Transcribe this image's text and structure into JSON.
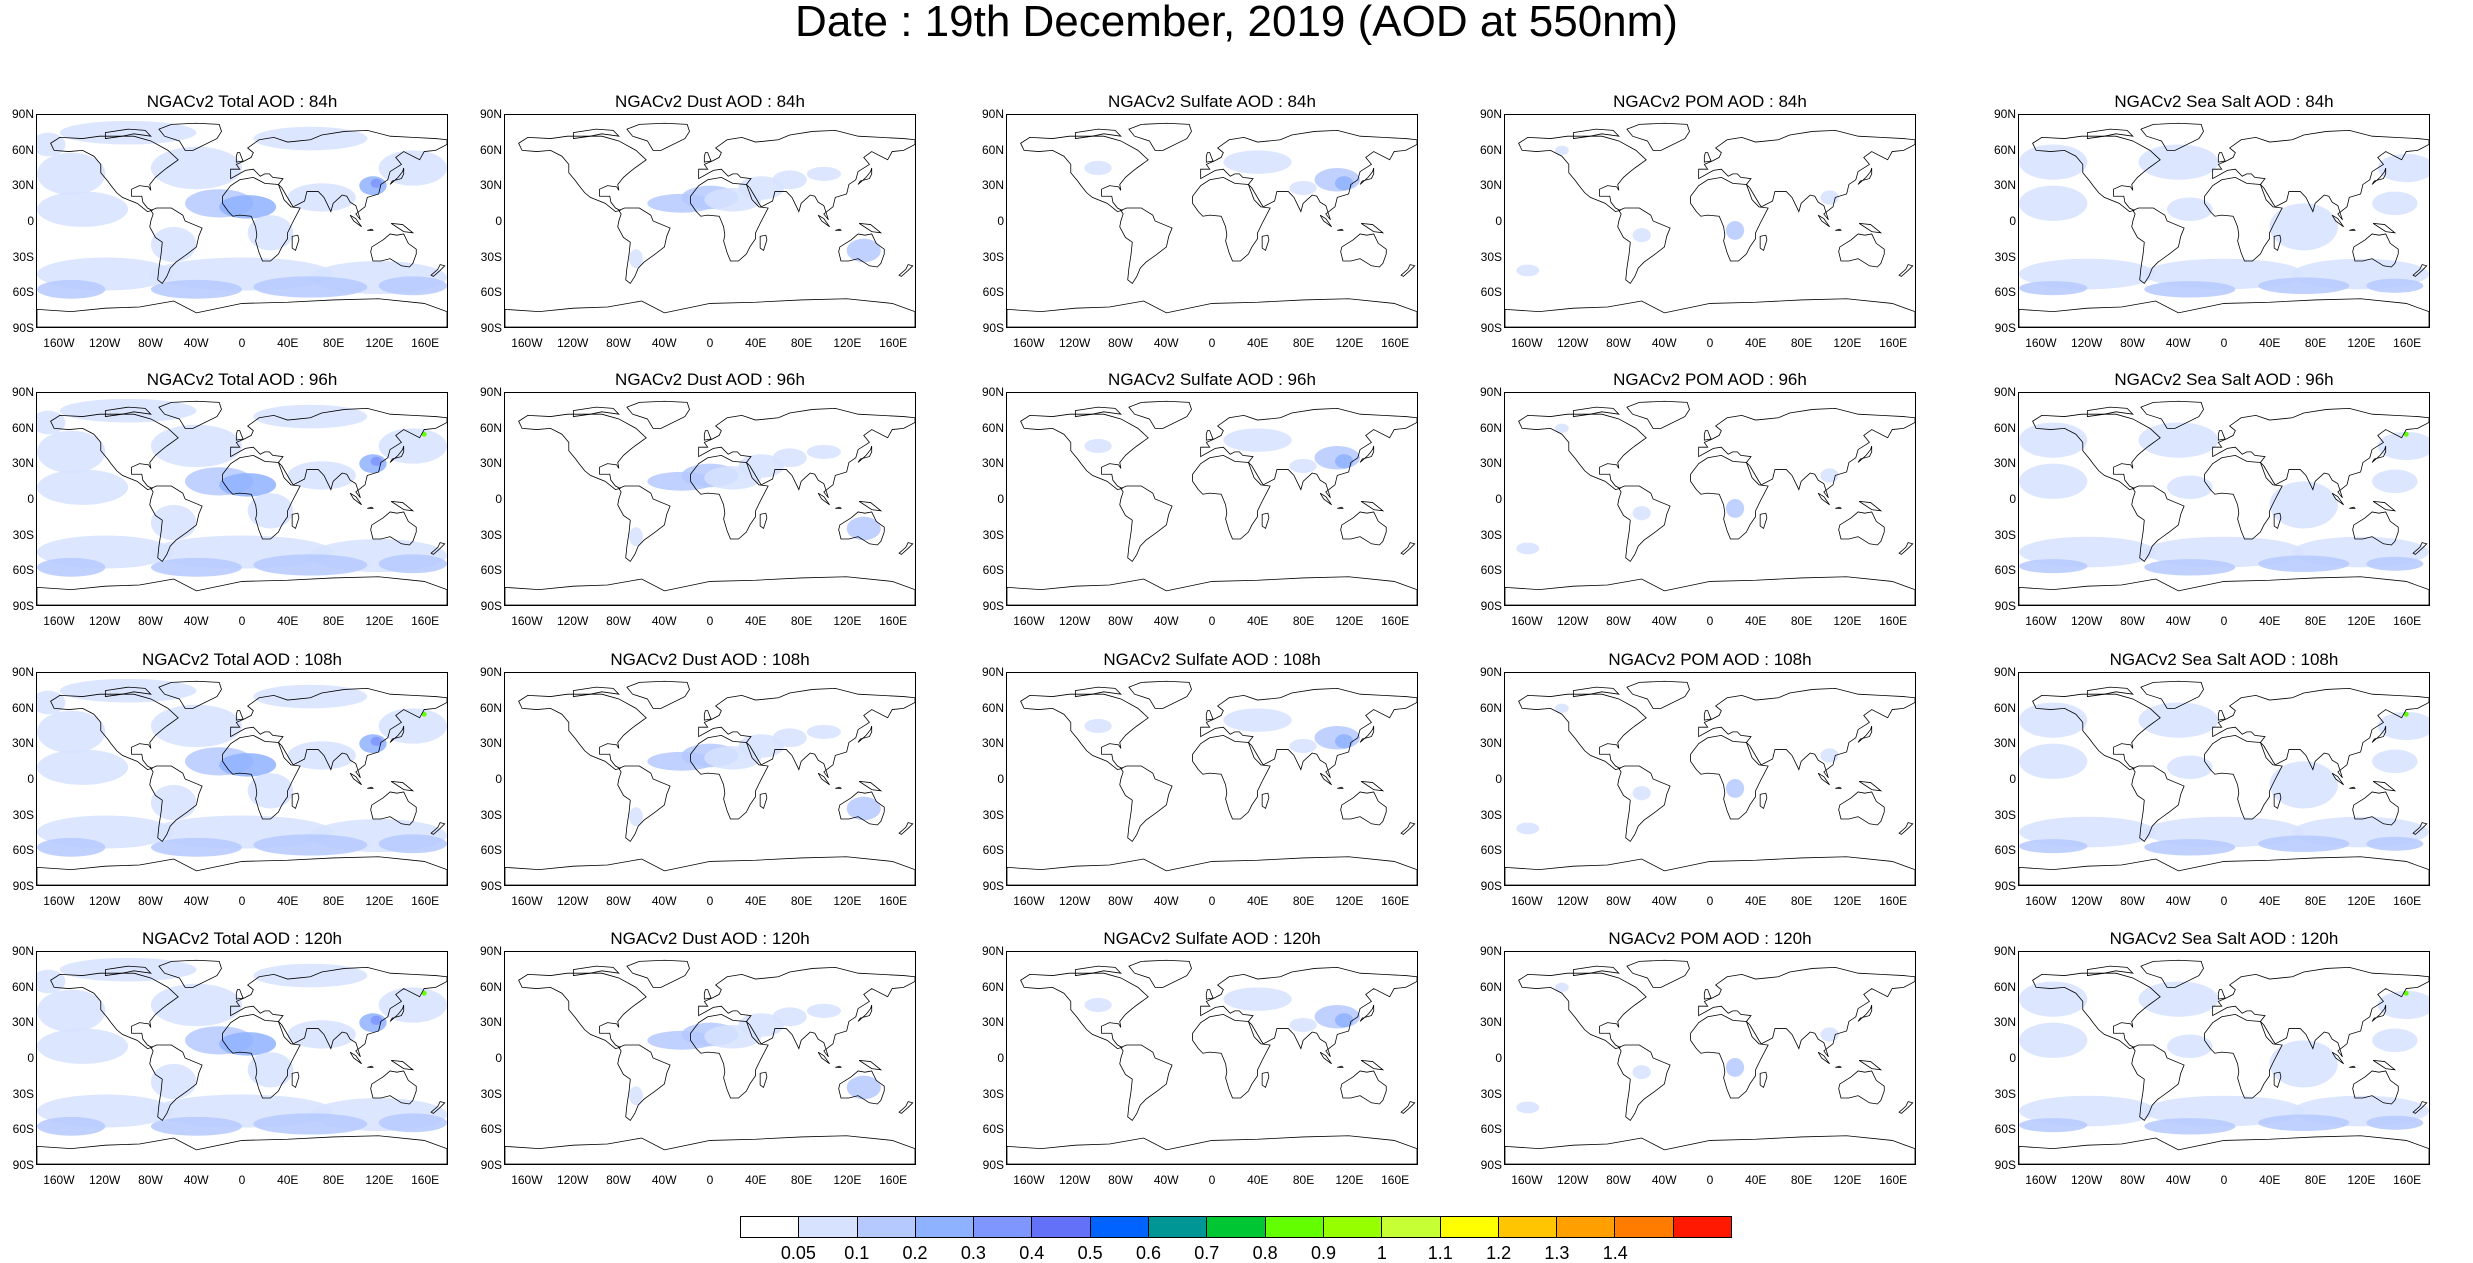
{
  "title": "Date : 19th December, 2019 (AOD at 550nm)",
  "lat_ticks": [
    "90N",
    "60N",
    "30N",
    "0",
    "30S",
    "60S",
    "90S"
  ],
  "lon_ticks": [
    "160W",
    "120W",
    "80W",
    "40W",
    "0",
    "40E",
    "80E",
    "120E",
    "160E"
  ],
  "lon_tick_values": [
    -160,
    -120,
    -80,
    -40,
    0,
    40,
    80,
    120,
    160
  ],
  "lon_range": [
    -180,
    180
  ],
  "lat_range": [
    -90,
    90
  ],
  "panels": [
    {
      "title": "NGACv2 Total AOD : 84h",
      "species": "total",
      "lead_hour": 84
    },
    {
      "title": "NGACv2 Dust AOD : 84h",
      "species": "dust",
      "lead_hour": 84
    },
    {
      "title": "NGACv2 Sulfate AOD : 84h",
      "species": "sulfate",
      "lead_hour": 84
    },
    {
      "title": "NGACv2 POM AOD : 84h",
      "species": "pom",
      "lead_hour": 84
    },
    {
      "title": "NGACv2 Sea Salt AOD : 84h",
      "species": "seasalt",
      "lead_hour": 84
    },
    {
      "title": "NGACv2 Total AOD : 96h",
      "species": "total",
      "lead_hour": 96
    },
    {
      "title": "NGACv2 Dust AOD : 96h",
      "species": "dust",
      "lead_hour": 96
    },
    {
      "title": "NGACv2 Sulfate AOD : 96h",
      "species": "sulfate",
      "lead_hour": 96
    },
    {
      "title": "NGACv2 POM AOD : 96h",
      "species": "pom",
      "lead_hour": 96
    },
    {
      "title": "NGACv2 Sea Salt AOD : 96h",
      "species": "seasalt",
      "lead_hour": 96
    },
    {
      "title": "NGACv2 Total AOD : 108h",
      "species": "total",
      "lead_hour": 108
    },
    {
      "title": "NGACv2 Dust AOD : 108h",
      "species": "dust",
      "lead_hour": 108
    },
    {
      "title": "NGACv2 Sulfate AOD : 108h",
      "species": "sulfate",
      "lead_hour": 108
    },
    {
      "title": "NGACv2 POM AOD : 108h",
      "species": "pom",
      "lead_hour": 108
    },
    {
      "title": "NGACv2 Sea Salt AOD : 108h",
      "species": "seasalt",
      "lead_hour": 108
    },
    {
      "title": "NGACv2 Total AOD : 120h",
      "species": "total",
      "lead_hour": 120
    },
    {
      "title": "NGACv2 Dust AOD : 120h",
      "species": "dust",
      "lead_hour": 120
    },
    {
      "title": "NGACv2 Sulfate AOD : 120h",
      "species": "sulfate",
      "lead_hour": 120
    },
    {
      "title": "NGACv2 POM AOD : 120h",
      "species": "pom",
      "lead_hour": 120
    },
    {
      "title": "NGACv2 Sea Salt  AOD : 120h",
      "species": "seasalt",
      "lead_hour": 120
    }
  ],
  "colorbar": {
    "labels": [
      "0.05",
      "0.1",
      "0.2",
      "0.3",
      "0.4",
      "0.5",
      "0.6",
      "0.7",
      "0.8",
      "0.9",
      "1",
      "1.1",
      "1.2",
      "1.3",
      "1.4"
    ],
    "colors": [
      "#ffffff",
      "#d6e2ff",
      "#b5c9ff",
      "#8eb2ff",
      "#7f96ff",
      "#6370f8",
      "#0063ff",
      "#009696",
      "#00c633",
      "#63ff00",
      "#96ff00",
      "#c6ff33",
      "#ffff00",
      "#ffc600",
      "#ffa000",
      "#ff7c00",
      "#ff1900"
    ]
  },
  "colors": {
    "land_outline": "#000000",
    "aod_light": "#d6e2ff",
    "aod_medium": "#b5c9ff",
    "aod_high": "#8eb2ff",
    "aod_peak": "#6370f8",
    "hotspot": "#63ff00"
  }
}
